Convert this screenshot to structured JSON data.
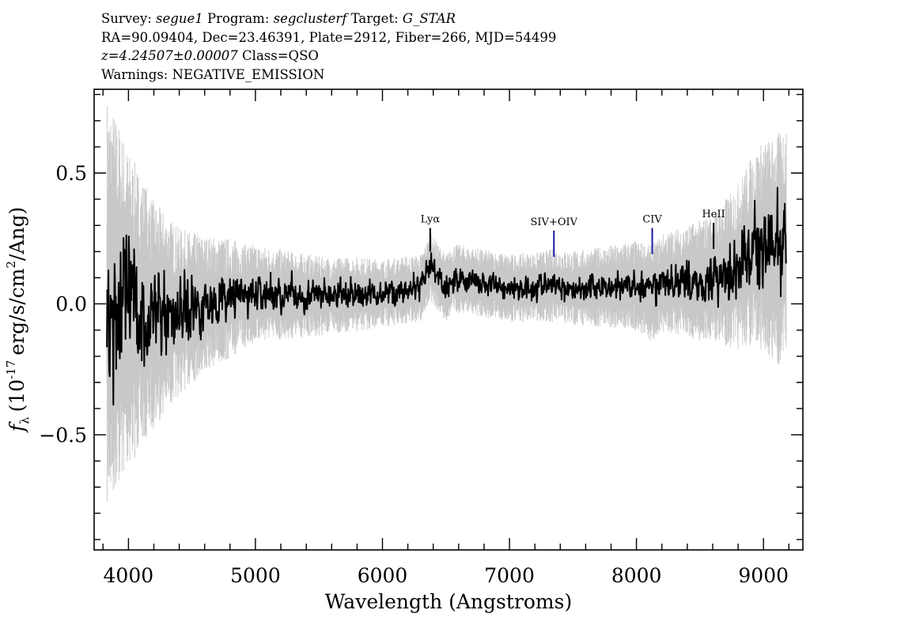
{
  "header": {
    "line1": {
      "survey_label": "Survey: ",
      "survey": "segue1",
      "program_label": " Program: ",
      "program": "segclusterf",
      "target_label": " Target: ",
      "target": "G_STAR"
    },
    "line2": "RA=90.09404, Dec=23.46391, Plate=2912, Fiber=266, MJD=54499",
    "line3": {
      "redshift": "z=4.24507±0.00007",
      "class": " Class=QSO"
    },
    "line4": "Warnings: NEGATIVE_EMISSION"
  },
  "chart_data": {
    "type": "line",
    "xlabel": "Wavelength (Angstroms)",
    "ylabel_prefix": "f",
    "ylabel_sub": "λ",
    "ylabel_unit_a": "(10",
    "ylabel_exp": "-17",
    "ylabel_unit_b": "erg/s/cm",
    "ylabel_exp2": "2",
    "ylabel_unit_c": "/Ang)",
    "xlim": [
      3730,
      9310
    ],
    "ylim": [
      -0.94,
      0.82
    ],
    "x_ticks": [
      4000,
      5000,
      6000,
      7000,
      8000,
      9000
    ],
    "x_tick_labels": [
      "4000",
      "5000",
      "6000",
      "7000",
      "8000",
      "9000"
    ],
    "y_ticks": [
      0.5,
      0.0,
      -0.5
    ],
    "y_tick_labels": [
      "0.5",
      "0.0",
      "−0.5"
    ],
    "grid": false,
    "series": [
      {
        "role": "error",
        "color": "#c8c8c8",
        "x": [
          3830,
          3900,
          4000,
          4100,
          4200,
          4300,
          4400,
          4500,
          4600,
          4700,
          4800,
          4900,
          5000,
          5200,
          5400,
          5600,
          5800,
          6000,
          6200,
          6400,
          6600,
          6800,
          7000,
          7200,
          7400,
          7600,
          7800,
          8000,
          8200,
          8400,
          8600,
          8800,
          9000,
          9180
        ],
        "amplitude": [
          0.55,
          0.5,
          0.42,
          0.36,
          0.3,
          0.26,
          0.22,
          0.2,
          0.18,
          0.17,
          0.16,
          0.14,
          0.13,
          0.12,
          0.11,
          0.1,
          0.1,
          0.09,
          0.09,
          0.09,
          0.09,
          0.09,
          0.09,
          0.09,
          0.1,
          0.1,
          0.11,
          0.12,
          0.13,
          0.15,
          0.17,
          0.22,
          0.28,
          0.32
        ]
      },
      {
        "role": "flux",
        "color": "#000000",
        "x": [
          3830,
          3900,
          4000,
          4200,
          4400,
          4600,
          4800,
          5000,
          5500,
          6000,
          6300,
          6380,
          6500,
          6560,
          7000,
          7350,
          7500,
          8000,
          8120,
          8200,
          8500,
          8600,
          8800,
          8900,
          9000,
          9100,
          9180
        ],
        "y": [
          0.0,
          0.0,
          -0.02,
          -0.04,
          -0.03,
          0.0,
          0.02,
          0.04,
          0.03,
          0.04,
          0.06,
          0.14,
          0.06,
          0.1,
          0.06,
          0.07,
          0.06,
          0.07,
          0.04,
          0.08,
          0.09,
          0.1,
          0.14,
          0.2,
          0.22,
          0.2,
          0.24
        ],
        "noise": [
          0.26,
          0.22,
          0.18,
          0.13,
          0.09,
          0.07,
          0.06,
          0.05,
          0.04,
          0.035,
          0.035,
          0.035,
          0.035,
          0.035,
          0.035,
          0.035,
          0.035,
          0.04,
          0.05,
          0.05,
          0.06,
          0.06,
          0.08,
          0.1,
          0.11,
          0.11,
          0.12
        ]
      }
    ],
    "annotations": [
      {
        "label": "Lyα",
        "x": 6376,
        "y_top": 0.29,
        "y_bottom": 0.2,
        "color": "#000000"
      },
      {
        "label": "SIV+OIV",
        "x": 7350,
        "y_top": 0.28,
        "y_bottom": 0.18,
        "color": "#1a1aa0"
      },
      {
        "label": "CIV",
        "x": 8124,
        "y_top": 0.29,
        "y_bottom": 0.19,
        "color": "#1a1aa0"
      },
      {
        "label": "HeII",
        "x": 8607,
        "y_top": 0.31,
        "y_bottom": 0.21,
        "color": "#000000"
      }
    ]
  }
}
